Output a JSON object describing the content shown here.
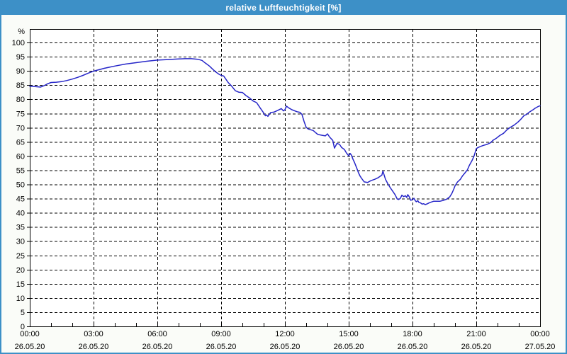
{
  "window": {
    "title": "relative Luftfeuchtigkeit [%]",
    "colors": {
      "titlebar_bg": "#3D90C7",
      "window_border": "#3D90C7",
      "body_bg": "#FAFCF8",
      "plot_bg": "#FFFFFF",
      "grid": "#000000",
      "axis": "#000000",
      "label_text": "#000000"
    }
  },
  "chart_data": {
    "type": "line",
    "title": "relative Luftfeuchtigkeit [%]",
    "ylabel": "%",
    "ylim": [
      0,
      105
    ],
    "yticks": [
      0,
      5,
      10,
      15,
      20,
      25,
      30,
      35,
      40,
      45,
      50,
      55,
      60,
      65,
      70,
      75,
      80,
      85,
      90,
      95,
      100
    ],
    "xlim_hours": [
      0,
      24
    ],
    "x_major_ticks": [
      {
        "hour": 0,
        "time": "00:00",
        "date": "26.05.20"
      },
      {
        "hour": 3,
        "time": "03:00",
        "date": "26.05.20"
      },
      {
        "hour": 6,
        "time": "06:00",
        "date": "26.05.20"
      },
      {
        "hour": 9,
        "time": "09:00",
        "date": "26.05.20"
      },
      {
        "hour": 12,
        "time": "12:00",
        "date": "26.05.20"
      },
      {
        "hour": 15,
        "time": "15:00",
        "date": "26.05.20"
      },
      {
        "hour": 18,
        "time": "18:00",
        "date": "26.05.20"
      },
      {
        "hour": 21,
        "time": "21:00",
        "date": "26.05.20"
      },
      {
        "hour": 24,
        "time": "00:00",
        "date": "27.05.20"
      }
    ],
    "x_minor_tick_every_hours": 1,
    "grid": "dashed",
    "legend_position": "none",
    "series": [
      {
        "name": "relative Luftfeuchtigkeit [%]",
        "color": "#2626C8",
        "points": [
          [
            0,
            84.6
          ],
          [
            0.25,
            84.5
          ],
          [
            0.5,
            84.3
          ],
          [
            0.67,
            84.8
          ],
          [
            0.83,
            85.4
          ],
          [
            1,
            85.9
          ],
          [
            1.25,
            86.0
          ],
          [
            1.5,
            86.2
          ],
          [
            1.75,
            86.6
          ],
          [
            2,
            87.1
          ],
          [
            2.25,
            87.7
          ],
          [
            2.5,
            88.4
          ],
          [
            2.75,
            89.2
          ],
          [
            3,
            89.9
          ],
          [
            3.25,
            90.4
          ],
          [
            3.5,
            90.9
          ],
          [
            3.75,
            91.3
          ],
          [
            4,
            91.7
          ],
          [
            4.5,
            92.4
          ],
          [
            5,
            92.9
          ],
          [
            5.5,
            93.4
          ],
          [
            6,
            93.8
          ],
          [
            6.5,
            94.0
          ],
          [
            7,
            94.2
          ],
          [
            7.3,
            94.3
          ],
          [
            7.6,
            94.3
          ],
          [
            7.9,
            94.1
          ],
          [
            8.1,
            93.7
          ],
          [
            8.25,
            92.8
          ],
          [
            8.45,
            91.7
          ],
          [
            8.6,
            90.6
          ],
          [
            8.75,
            89.6
          ],
          [
            8.9,
            88.8
          ],
          [
            9,
            88.4
          ],
          [
            9.12,
            88.2
          ],
          [
            9.33,
            85.9
          ],
          [
            9.5,
            84.6
          ],
          [
            9.67,
            83.0
          ],
          [
            9.83,
            82.5
          ],
          [
            10,
            82.4
          ],
          [
            10.17,
            81.3
          ],
          [
            10.33,
            80.5
          ],
          [
            10.5,
            79.4
          ],
          [
            10.67,
            78.8
          ],
          [
            10.83,
            77.0
          ],
          [
            11,
            75.2
          ],
          [
            11.08,
            74.2
          ],
          [
            11.13,
            74.5
          ],
          [
            11.2,
            74.0
          ],
          [
            11.33,
            75.3
          ],
          [
            11.5,
            75.5
          ],
          [
            11.67,
            76.1
          ],
          [
            11.83,
            76.7
          ],
          [
            11.93,
            75.9
          ],
          [
            12,
            76.3
          ],
          [
            12.07,
            77.6
          ],
          [
            12.17,
            77.0
          ],
          [
            12.33,
            76.3
          ],
          [
            12.57,
            75.6
          ],
          [
            12.7,
            75.4
          ],
          [
            12.8,
            74.7
          ],
          [
            12.9,
            72.2
          ],
          [
            13,
            70.1
          ],
          [
            13.1,
            69.5
          ],
          [
            13.33,
            69.0
          ],
          [
            13.45,
            68.2
          ],
          [
            13.55,
            67.6
          ],
          [
            13.75,
            67.3
          ],
          [
            13.9,
            67.1
          ],
          [
            14,
            67.8
          ],
          [
            14.1,
            66.7
          ],
          [
            14.25,
            65.5
          ],
          [
            14.33,
            62.8
          ],
          [
            14.45,
            64.5
          ],
          [
            14.57,
            64.1
          ],
          [
            14.67,
            63.0
          ],
          [
            14.8,
            62.3
          ],
          [
            14.9,
            61.0
          ],
          [
            15,
            60.1
          ],
          [
            15.07,
            60.9
          ],
          [
            15.13,
            60.3
          ],
          [
            15.2,
            58.9
          ],
          [
            15.28,
            57.6
          ],
          [
            15.37,
            55.9
          ],
          [
            15.45,
            54.3
          ],
          [
            15.53,
            53.0
          ],
          [
            15.6,
            52.2
          ],
          [
            15.68,
            51.4
          ],
          [
            15.73,
            50.9
          ],
          [
            15.89,
            50.7
          ],
          [
            16.06,
            51.4
          ],
          [
            16.22,
            51.8
          ],
          [
            16.39,
            52.4
          ],
          [
            16.56,
            53.3
          ],
          [
            16.61,
            54.7
          ],
          [
            16.73,
            51.8
          ],
          [
            16.85,
            50.1
          ],
          [
            16.95,
            48.9
          ],
          [
            17.07,
            47.6
          ],
          [
            17.18,
            46.4
          ],
          [
            17.28,
            44.9
          ],
          [
            17.35,
            44.7
          ],
          [
            17.43,
            45.1
          ],
          [
            17.5,
            46.2
          ],
          [
            17.58,
            45.7
          ],
          [
            17.67,
            46.0
          ],
          [
            17.73,
            45.4
          ],
          [
            17.78,
            46.4
          ],
          [
            17.85,
            45.6
          ],
          [
            17.92,
            44.4
          ],
          [
            18,
            44.7
          ],
          [
            18.07,
            45.1
          ],
          [
            18.13,
            44.3
          ],
          [
            18.18,
            43.9
          ],
          [
            18.25,
            44.3
          ],
          [
            18.3,
            43.7
          ],
          [
            18.38,
            43.5
          ],
          [
            18.45,
            43.1
          ],
          [
            18.53,
            43.2
          ],
          [
            18.6,
            42.9
          ],
          [
            18.7,
            43.2
          ],
          [
            18.78,
            43.5
          ],
          [
            18.88,
            43.8
          ],
          [
            19,
            44.1
          ],
          [
            19.3,
            44.1
          ],
          [
            19.45,
            44.4
          ],
          [
            19.6,
            44.8
          ],
          [
            19.75,
            45.6
          ],
          [
            19.85,
            46.8
          ],
          [
            19.95,
            48.5
          ],
          [
            20,
            49.5
          ],
          [
            20.12,
            50.9
          ],
          [
            20.25,
            51.8
          ],
          [
            20.35,
            53.0
          ],
          [
            20.45,
            53.9
          ],
          [
            20.58,
            55.1
          ],
          [
            20.68,
            56.8
          ],
          [
            20.8,
            58.4
          ],
          [
            20.9,
            60.1
          ],
          [
            21,
            62.6
          ],
          [
            21.08,
            63.0
          ],
          [
            21.2,
            63.4
          ],
          [
            21.35,
            63.8
          ],
          [
            21.5,
            64.1
          ],
          [
            21.67,
            64.7
          ],
          [
            21.78,
            65.5
          ],
          [
            21.95,
            66.3
          ],
          [
            22.1,
            67.2
          ],
          [
            22.28,
            68.0
          ],
          [
            22.45,
            69.3
          ],
          [
            22.6,
            70.1
          ],
          [
            22.78,
            70.9
          ],
          [
            22.95,
            71.9
          ],
          [
            23.1,
            73.0
          ],
          [
            23.25,
            74.3
          ],
          [
            23.35,
            74.6
          ],
          [
            23.5,
            75.5
          ],
          [
            23.67,
            76.3
          ],
          [
            23.78,
            76.9
          ],
          [
            23.9,
            77.4
          ],
          [
            24,
            77.7
          ]
        ]
      }
    ]
  }
}
